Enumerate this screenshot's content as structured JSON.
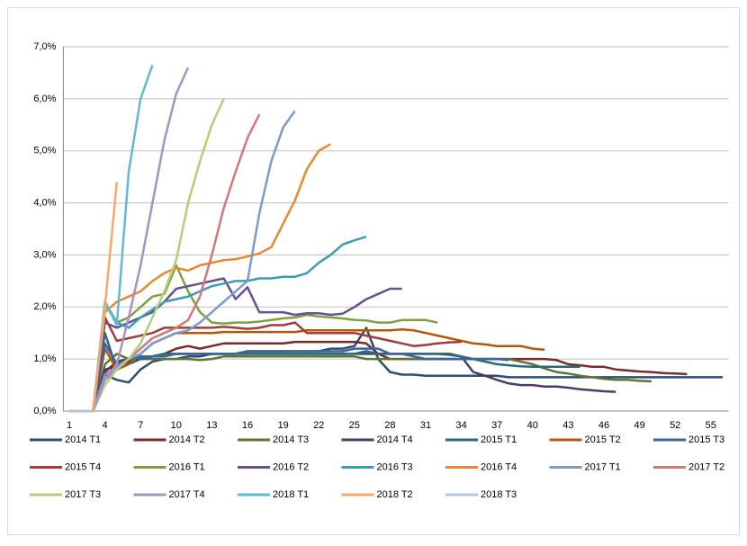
{
  "chart_data": {
    "type": "line",
    "categories": [
      1,
      null,
      null,
      4,
      null,
      null,
      7,
      null,
      null,
      10,
      null,
      null,
      13,
      null,
      null,
      16,
      null,
      null,
      19,
      null,
      null,
      22,
      null,
      null,
      25,
      null,
      null,
      28,
      null,
      null,
      31,
      null,
      null,
      34,
      null,
      null,
      37,
      null,
      null,
      40,
      null,
      null,
      43,
      null,
      null,
      46,
      null,
      null,
      49,
      null,
      null,
      52,
      null,
      null,
      55,
      null
    ],
    "ylim": [
      0,
      7
    ],
    "yticks": [
      {
        "value": 0,
        "label": "0,0%"
      },
      {
        "value": 1,
        "label": "1,0%"
      },
      {
        "value": 2,
        "label": "2,0%"
      },
      {
        "value": 3,
        "label": "3,0%"
      },
      {
        "value": 4,
        "label": "4,0%"
      },
      {
        "value": 5,
        "label": "5,0%"
      },
      {
        "value": 6,
        "label": "6,0%"
      },
      {
        "value": 7,
        "label": "7,0%"
      }
    ],
    "grid": true,
    "legend": "bottom",
    "series": [
      {
        "name": "2014 T1",
        "color": "#2c4d75",
        "values": [
          0,
          0,
          0,
          0.7,
          0.6,
          0.55,
          0.8,
          0.95,
          1.0,
          1.0,
          1.05,
          1.05,
          1.1,
          1.1,
          1.1,
          1.15,
          1.15,
          1.15,
          1.15,
          1.15,
          1.15,
          1.15,
          1.2,
          1.2,
          1.25,
          1.6,
          1.0,
          0.75,
          0.7,
          0.7,
          0.68,
          0.68,
          0.68,
          0.68,
          0.68,
          0.68,
          0.68,
          0.65,
          0.65,
          0.65,
          0.65,
          0.65,
          0.65,
          0.65,
          0.65,
          0.65,
          0.65,
          0.65,
          0.65,
          0.65,
          0.65,
          0.65,
          0.65,
          0.65,
          0.65,
          0.65
        ]
      },
      {
        "name": "2014 T2",
        "color": "#772c2a",
        "values": [
          0,
          0,
          0,
          0.75,
          0.95,
          1.0,
          1.0,
          1.05,
          1.1,
          1.2,
          1.25,
          1.2,
          1.25,
          1.3,
          1.3,
          1.3,
          1.3,
          1.3,
          1.3,
          1.33,
          1.33,
          1.33,
          1.33,
          1.33,
          1.33,
          1.3,
          1.1,
          1.0,
          1.0,
          1.0,
          1.0,
          1.0,
          1.0,
          1.0,
          1.0,
          1.0,
          1.0,
          1.0,
          1.0,
          1.0,
          1.0,
          0.98,
          0.9,
          0.88,
          0.85,
          0.85,
          0.8,
          0.78,
          0.76,
          0.75,
          0.73,
          0.72,
          0.71,
          null,
          null,
          null
        ]
      },
      {
        "name": "2014 T3",
        "color": "#5f7530",
        "values": [
          0,
          0,
          0,
          0.9,
          1.1,
          1.0,
          1.0,
          1.0,
          1.0,
          1.0,
          1.0,
          0.98,
          1.0,
          1.05,
          1.05,
          1.05,
          1.05,
          1.05,
          1.05,
          1.05,
          1.05,
          1.05,
          1.05,
          1.05,
          1.05,
          1.0,
          1.0,
          1.0,
          1.0,
          1.0,
          1.0,
          1.0,
          1.0,
          1.0,
          1.0,
          1.0,
          1.0,
          1.0,
          0.95,
          0.9,
          0.82,
          0.75,
          0.72,
          0.68,
          0.65,
          0.62,
          0.6,
          0.6,
          0.58,
          0.57,
          null,
          null,
          null,
          null,
          null,
          null
        ]
      },
      {
        "name": "2014 T4",
        "color": "#4d3b62",
        "values": [
          0,
          0,
          0,
          0.8,
          0.85,
          0.95,
          1.0,
          1.05,
          1.1,
          1.1,
          1.1,
          1.1,
          1.1,
          1.1,
          1.1,
          1.1,
          1.1,
          1.1,
          1.1,
          1.1,
          1.1,
          1.1,
          1.1,
          1.1,
          1.1,
          1.1,
          1.1,
          1.1,
          1.1,
          1.1,
          1.1,
          1.1,
          1.1,
          1.05,
          0.75,
          0.68,
          0.6,
          0.53,
          0.5,
          0.5,
          0.47,
          0.47,
          0.45,
          0.42,
          0.4,
          0.38,
          0.37,
          null,
          null,
          null,
          null,
          null,
          null,
          null,
          null,
          null
        ]
      },
      {
        "name": "2015 T1",
        "color": "#276a7c",
        "values": [
          0,
          0,
          0,
          1.5,
          0.8,
          0.9,
          1.0,
          1.05,
          1.1,
          1.1,
          1.1,
          1.1,
          1.1,
          1.1,
          1.1,
          1.1,
          1.1,
          1.1,
          1.1,
          1.1,
          1.1,
          1.1,
          1.1,
          1.1,
          1.1,
          1.15,
          1.1,
          1.1,
          1.1,
          1.1,
          1.1,
          1.1,
          1.08,
          1.05,
          1.0,
          0.95,
          0.9,
          0.88,
          0.86,
          0.85,
          0.85,
          0.85,
          0.85,
          0.85,
          null,
          null,
          null,
          null,
          null,
          null,
          null,
          null,
          null,
          null,
          null,
          null
        ]
      },
      {
        "name": "2015 T2",
        "color": "#b65708",
        "values": [
          0,
          0,
          0,
          1.2,
          0.8,
          0.9,
          1.1,
          1.3,
          1.4,
          1.5,
          1.5,
          1.5,
          1.5,
          1.52,
          1.52,
          1.52,
          1.52,
          1.52,
          1.52,
          1.52,
          1.55,
          1.55,
          1.55,
          1.55,
          1.55,
          1.55,
          1.55,
          1.55,
          1.57,
          1.55,
          1.5,
          1.45,
          1.4,
          1.35,
          1.3,
          1.28,
          1.25,
          1.25,
          1.25,
          1.2,
          1.18,
          null,
          null,
          null,
          null,
          null,
          null,
          null,
          null,
          null,
          null,
          null,
          null,
          null,
          null,
          null
        ]
      },
      {
        "name": "2015 T3",
        "color": "#3a64a0",
        "values": [
          0,
          0,
          0,
          1.3,
          0.9,
          1.0,
          1.05,
          1.05,
          1.05,
          1.1,
          1.1,
          1.1,
          1.1,
          1.1,
          1.1,
          1.15,
          1.15,
          1.15,
          1.15,
          1.15,
          1.15,
          1.15,
          1.15,
          1.15,
          1.2,
          1.2,
          1.2,
          1.1,
          1.1,
          1.05,
          1.0,
          1.0,
          1.0,
          1.0,
          1.0,
          1.0,
          1.0,
          0.98,
          null,
          null,
          null,
          null,
          null,
          null,
          null,
          null,
          null,
          null,
          null,
          null,
          null,
          null,
          null,
          null,
          null,
          null
        ]
      },
      {
        "name": "2015 T4",
        "color": "#a33d3a",
        "values": [
          0,
          0,
          0,
          1.8,
          1.35,
          1.4,
          1.45,
          1.5,
          1.6,
          1.6,
          1.6,
          1.6,
          1.6,
          1.62,
          1.6,
          1.58,
          1.6,
          1.65,
          1.65,
          1.7,
          1.5,
          1.5,
          1.5,
          1.5,
          1.5,
          1.45,
          1.4,
          1.35,
          1.3,
          1.25,
          1.27,
          1.3,
          1.32,
          1.33,
          null,
          null,
          null,
          null,
          null,
          null,
          null,
          null,
          null,
          null,
          null,
          null,
          null,
          null,
          null,
          null,
          null,
          null,
          null,
          null,
          null,
          null
        ]
      },
      {
        "name": "2016 T1",
        "color": "#7fa03f",
        "values": [
          0,
          0,
          0,
          2.1,
          1.7,
          1.8,
          2.0,
          2.2,
          2.25,
          2.8,
          2.3,
          1.9,
          1.7,
          1.68,
          1.7,
          1.7,
          1.72,
          1.75,
          1.78,
          1.8,
          1.85,
          1.82,
          1.8,
          1.78,
          1.75,
          1.74,
          1.7,
          1.7,
          1.75,
          1.75,
          1.75,
          1.7,
          null,
          null,
          null,
          null,
          null,
          null,
          null,
          null,
          null,
          null,
          null,
          null,
          null,
          null,
          null,
          null,
          null,
          null,
          null,
          null,
          null,
          null,
          null,
          null
        ]
      },
      {
        "name": "2016 T2",
        "color": "#6a5090",
        "values": [
          0,
          0,
          0,
          1.7,
          1.6,
          1.7,
          1.8,
          1.9,
          2.1,
          2.35,
          2.4,
          2.45,
          2.5,
          2.55,
          2.15,
          2.38,
          1.9,
          1.9,
          1.9,
          1.85,
          1.88,
          1.88,
          1.85,
          1.87,
          2.0,
          2.15,
          2.25,
          2.35,
          2.35,
          null,
          null,
          null,
          null,
          null,
          null,
          null,
          null,
          null,
          null,
          null,
          null,
          null,
          null,
          null,
          null,
          null,
          null,
          null,
          null,
          null,
          null,
          null,
          null,
          null,
          null,
          null
        ]
      },
      {
        "name": "2016 T3",
        "color": "#3a9cb8",
        "values": [
          0,
          0,
          0,
          2.05,
          1.7,
          1.6,
          1.8,
          1.95,
          2.1,
          2.15,
          2.2,
          2.3,
          2.4,
          2.45,
          2.5,
          2.5,
          2.55,
          2.55,
          2.58,
          2.58,
          2.65,
          2.85,
          3.0,
          3.2,
          3.28,
          3.35,
          null,
          null,
          null,
          null,
          null,
          null,
          null,
          null,
          null,
          null,
          null,
          null,
          null,
          null,
          null,
          null,
          null,
          null,
          null,
          null,
          null,
          null,
          null,
          null,
          null,
          null,
          null,
          null,
          null,
          null
        ]
      },
      {
        "name": "2016 T4",
        "color": "#e9892f",
        "values": [
          0,
          0,
          0,
          1.9,
          2.1,
          2.2,
          2.3,
          2.5,
          2.65,
          2.75,
          2.7,
          2.8,
          2.85,
          2.9,
          2.92,
          2.97,
          3.03,
          3.15,
          3.6,
          4.05,
          4.65,
          5.0,
          5.13,
          null,
          null,
          null,
          null,
          null,
          null,
          null,
          null,
          null,
          null,
          null,
          null,
          null,
          null,
          null,
          null,
          null,
          null,
          null,
          null,
          null,
          null,
          null,
          null,
          null,
          null,
          null,
          null,
          null,
          null,
          null,
          null,
          null
        ]
      },
      {
        "name": "2017 T1",
        "color": "#7b9ad0",
        "values": [
          0,
          0,
          0,
          0.7,
          0.85,
          1.0,
          1.1,
          1.3,
          1.4,
          1.5,
          1.55,
          1.7,
          1.9,
          2.1,
          2.3,
          2.5,
          3.8,
          4.8,
          5.45,
          5.77,
          null,
          null,
          null,
          null,
          null,
          null,
          null,
          null,
          null,
          null,
          null,
          null,
          null,
          null,
          null,
          null,
          null,
          null,
          null,
          null,
          null,
          null,
          null,
          null,
          null,
          null,
          null,
          null,
          null,
          null,
          null,
          null,
          null,
          null,
          null,
          null
        ]
      },
      {
        "name": "2017 T2",
        "color": "#d07a78",
        "values": [
          0,
          0,
          0,
          0.6,
          0.8,
          1.0,
          1.2,
          1.4,
          1.5,
          1.6,
          1.75,
          2.2,
          3.0,
          3.9,
          4.6,
          5.25,
          5.7,
          null,
          null,
          null,
          null,
          null,
          null,
          null,
          null,
          null,
          null,
          null,
          null,
          null,
          null,
          null,
          null,
          null,
          null,
          null,
          null,
          null,
          null,
          null,
          null,
          null,
          null,
          null,
          null,
          null,
          null,
          null,
          null,
          null,
          null,
          null,
          null,
          null,
          null,
          null
        ]
      },
      {
        "name": "2017 T3",
        "color": "#b3cf7a",
        "values": [
          0,
          0,
          0,
          0.5,
          0.8,
          1.0,
          1.3,
          1.8,
          2.3,
          2.9,
          4.0,
          4.8,
          5.5,
          6.0,
          null,
          null,
          null,
          null,
          null,
          null,
          null,
          null,
          null,
          null,
          null,
          null,
          null,
          null,
          null,
          null,
          null,
          null,
          null,
          null,
          null,
          null,
          null,
          null,
          null,
          null,
          null,
          null,
          null,
          null,
          null,
          null,
          null,
          null,
          null,
          null,
          null,
          null,
          null,
          null,
          null,
          null
        ]
      },
      {
        "name": "2017 T4",
        "color": "#a593c4",
        "values": [
          0,
          0,
          0,
          0.6,
          0.9,
          1.8,
          2.8,
          4.0,
          5.2,
          6.1,
          6.6,
          null,
          null,
          null,
          null,
          null,
          null,
          null,
          null,
          null,
          null,
          null,
          null,
          null,
          null,
          null,
          null,
          null,
          null,
          null,
          null,
          null,
          null,
          null,
          null,
          null,
          null,
          null,
          null,
          null,
          null,
          null,
          null,
          null,
          null,
          null,
          null,
          null,
          null,
          null,
          null,
          null,
          null,
          null,
          null,
          null
        ]
      },
      {
        "name": "2018 T1",
        "color": "#63b8d6",
        "values": [
          0,
          0,
          0,
          2.1,
          1.65,
          4.6,
          6.0,
          6.65,
          null,
          null,
          null,
          null,
          null,
          null,
          null,
          null,
          null,
          null,
          null,
          null,
          null,
          null,
          null,
          null,
          null,
          null,
          null,
          null,
          null,
          null,
          null,
          null,
          null,
          null,
          null,
          null,
          null,
          null,
          null,
          null,
          null,
          null,
          null,
          null,
          null,
          null,
          null,
          null,
          null,
          null,
          null,
          null,
          null,
          null,
          null,
          null
        ]
      },
      {
        "name": "2018 T2",
        "color": "#f7a86a",
        "values": [
          0,
          0,
          0,
          2.0,
          4.4,
          null,
          null,
          null,
          null,
          null,
          null,
          null,
          null,
          null,
          null,
          null,
          null,
          null,
          null,
          null,
          null,
          null,
          null,
          null,
          null,
          null,
          null,
          null,
          null,
          null,
          null,
          null,
          null,
          null,
          null,
          null,
          null,
          null,
          null,
          null,
          null,
          null,
          null,
          null,
          null,
          null,
          null,
          null,
          null,
          null,
          null,
          null,
          null,
          null,
          null,
          null
        ]
      },
      {
        "name": "2018 T3",
        "color": "#b4c6e4",
        "values": [
          0,
          0,
          0,
          null,
          null,
          null,
          null,
          null,
          null,
          null,
          null,
          null,
          null,
          null,
          null,
          null,
          null,
          null,
          null,
          null,
          null,
          null,
          null,
          null,
          null,
          null,
          null,
          null,
          null,
          null,
          null,
          null,
          null,
          null,
          null,
          null,
          null,
          null,
          null,
          null,
          null,
          null,
          null,
          null,
          null,
          null,
          null,
          null,
          null,
          null,
          null,
          null,
          null,
          null,
          null,
          null
        ]
      }
    ]
  }
}
